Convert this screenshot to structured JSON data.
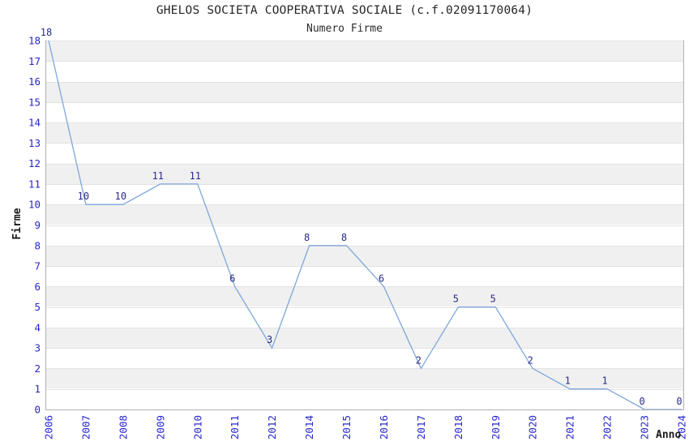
{
  "header": {
    "title": "GHELOS SOCIETA COOPERATIVA SOCIALE (c.f.02091170064)",
    "subtitle": "Numero Firme"
  },
  "chart_data": {
    "type": "line",
    "title": "GHELOS SOCIETA COOPERATIVA SOCIALE (c.f.02091170064)",
    "subtitle": "Numero Firme",
    "xlabel": "Anno",
    "ylabel": "Firme",
    "x": [
      "2006",
      "2007",
      "2008",
      "2009",
      "2010",
      "2011",
      "2012",
      "2014",
      "2015",
      "2016",
      "2017",
      "2018",
      "2019",
      "2020",
      "2021",
      "2022",
      "2023",
      "2024"
    ],
    "values": [
      18,
      10,
      10,
      11,
      11,
      6,
      3,
      8,
      8,
      6,
      2,
      5,
      5,
      2,
      1,
      1,
      0,
      0
    ],
    "ylim": [
      0,
      18
    ],
    "ytick_step": 1,
    "grid": true,
    "legend": false,
    "data_labels_visible": true,
    "colors": {
      "line": "#7da7dc",
      "tick_labels": "#2626cc",
      "data_labels": "#2b2b88",
      "band": "#f0f0f0",
      "grid": "#e2e2e2",
      "spine": "#b0b0b0"
    }
  }
}
